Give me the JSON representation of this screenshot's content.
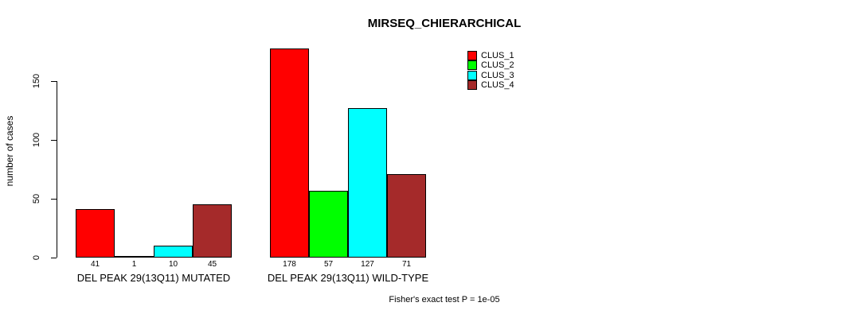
{
  "chart_data": {
    "type": "bar",
    "title": "MIRSEQ_CHIERARCHICAL",
    "ylabel": "number of cases",
    "xlabel": "",
    "annotation": "Fisher's exact test P = 1e-05",
    "legend_position": "top-right",
    "grid": false,
    "ylim": [
      0,
      150
    ],
    "yticks": [
      0,
      50,
      100,
      150
    ],
    "categories": [
      "DEL PEAK 29(13Q11) MUTATED",
      "DEL PEAK 29(13Q11) WILD-TYPE"
    ],
    "series": [
      {
        "name": "CLUS_1",
        "color": "#ff0000",
        "values": [
          41,
          178
        ]
      },
      {
        "name": "CLUS_2",
        "color": "#00ff00",
        "values": [
          1,
          57
        ]
      },
      {
        "name": "CLUS_3",
        "color": "#00ffff",
        "values": [
          10,
          127
        ]
      },
      {
        "name": "CLUS_4",
        "color": "#a52a2a",
        "values": [
          45,
          71
        ]
      }
    ],
    "bar_value_labels_shown": true
  },
  "colors": {
    "background": "#ffffff",
    "axis": "#000000",
    "text": "#000000"
  }
}
